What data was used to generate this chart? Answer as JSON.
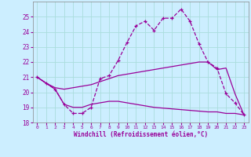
{
  "xlabel": "Windchill (Refroidissement éolien,°C)",
  "background_color": "#cceeff",
  "grid_color": "#aadddd",
  "line_color": "#990099",
  "x_values": [
    0,
    1,
    2,
    3,
    4,
    5,
    6,
    7,
    8,
    9,
    10,
    11,
    12,
    13,
    14,
    15,
    16,
    17,
    18,
    19,
    20,
    21,
    22,
    23
  ],
  "curve1": [
    21.0,
    20.6,
    20.2,
    19.2,
    18.6,
    18.6,
    19.0,
    20.9,
    21.1,
    22.1,
    23.3,
    24.4,
    24.7,
    24.1,
    24.9,
    24.9,
    25.5,
    24.7,
    23.2,
    22.0,
    21.6,
    19.9,
    19.3,
    18.5
  ],
  "curve2": [
    21.0,
    20.6,
    20.3,
    20.2,
    20.3,
    20.4,
    20.5,
    20.7,
    20.9,
    21.1,
    21.2,
    21.3,
    21.4,
    21.5,
    21.6,
    21.7,
    21.8,
    21.9,
    22.0,
    22.0,
    21.5,
    21.6,
    19.9,
    18.5
  ],
  "curve3": [
    21.0,
    20.6,
    20.2,
    19.2,
    19.0,
    19.0,
    19.2,
    19.3,
    19.4,
    19.4,
    19.3,
    19.2,
    19.1,
    19.0,
    18.95,
    18.9,
    18.85,
    18.8,
    18.75,
    18.7,
    18.7,
    18.6,
    18.6,
    18.5
  ],
  "ylim": [
    18,
    26
  ],
  "yticks": [
    18,
    19,
    20,
    21,
    22,
    23,
    24,
    25
  ],
  "xlim": [
    -0.5,
    23.5
  ]
}
